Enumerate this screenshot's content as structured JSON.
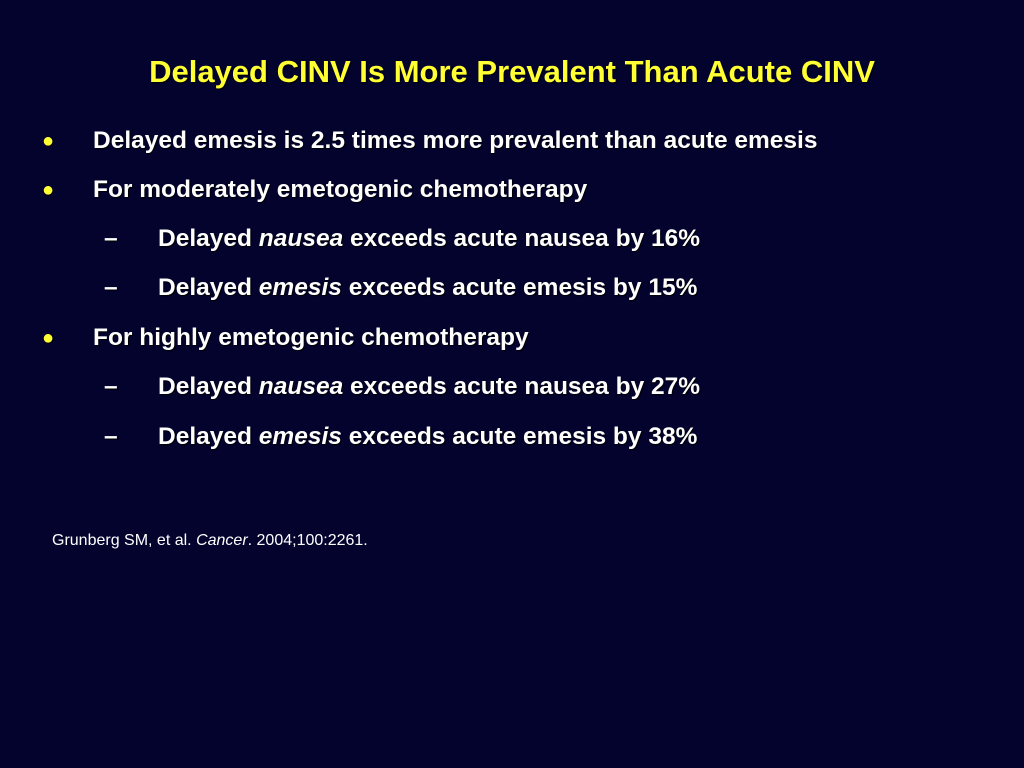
{
  "slide": {
    "title": "Delayed CINV Is More Prevalent Than Acute CINV",
    "bullet_glyph": "●",
    "dash_glyph": "–",
    "items": [
      {
        "level": 1,
        "text": "Delayed emesis is 2.5 times more prevalent than acute emesis"
      },
      {
        "level": 1,
        "text": "For moderately emetogenic chemotherapy"
      },
      {
        "level": 2,
        "prefix": "Delayed ",
        "emphasis": "nausea",
        "suffix": " exceeds acute nausea by 16%"
      },
      {
        "level": 2,
        "prefix": "Delayed ",
        "emphasis": "emesis",
        "suffix": " exceeds acute emesis by 15%"
      },
      {
        "level": 1,
        "text": "For highly emetogenic chemotherapy"
      },
      {
        "level": 2,
        "prefix": "Delayed ",
        "emphasis": "nausea",
        "suffix": " exceeds acute nausea by 27%"
      },
      {
        "level": 2,
        "prefix": "Delayed ",
        "emphasis": "emesis",
        "suffix": " exceeds acute emesis by 38%"
      }
    ],
    "reference": {
      "authors": "Grunberg SM, et al. ",
      "journal": "Cancer",
      "citation": ". 2004;100:2261."
    }
  },
  "colors": {
    "background": "#03032e",
    "title": "#ffff33",
    "body_text": "#ffffff",
    "bullet": "#ffff33"
  }
}
